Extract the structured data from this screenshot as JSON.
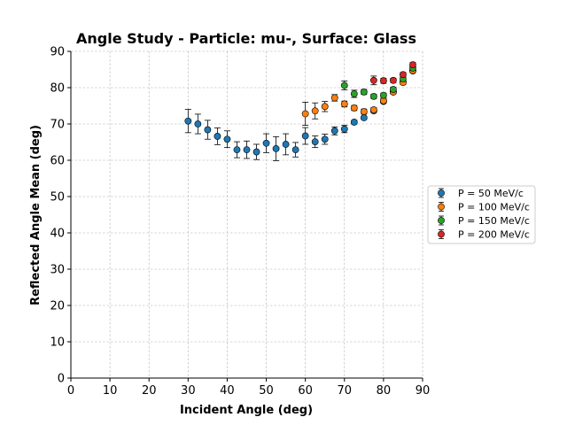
{
  "chart_data": {
    "type": "scatter",
    "title": "Angle Study - Particle: mu-, Surface: Glass",
    "xlabel": "Incident Angle (deg)",
    "ylabel": "Reflected Angle Mean (deg)",
    "xlim": [
      0,
      90
    ],
    "ylim": [
      0,
      90
    ],
    "xticks": [
      0,
      10,
      20,
      30,
      40,
      50,
      60,
      70,
      80,
      90
    ],
    "yticks": [
      0,
      10,
      20,
      30,
      40,
      50,
      60,
      70,
      80,
      90
    ],
    "grid": true,
    "legend_position": "right",
    "series": [
      {
        "name": "P = 50 MeV/c",
        "color": "#1f77b4",
        "points": [
          {
            "x": 30,
            "y": 70.8,
            "err": 3.2
          },
          {
            "x": 32.5,
            "y": 70.0,
            "err": 2.7
          },
          {
            "x": 35,
            "y": 68.4,
            "err": 2.6
          },
          {
            "x": 37.5,
            "y": 66.6,
            "err": 2.3
          },
          {
            "x": 40,
            "y": 65.8,
            "err": 2.3
          },
          {
            "x": 42.5,
            "y": 62.9,
            "err": 2.2
          },
          {
            "x": 45,
            "y": 62.9,
            "err": 2.4
          },
          {
            "x": 47.5,
            "y": 62.3,
            "err": 2.1
          },
          {
            "x": 50,
            "y": 64.7,
            "err": 2.6
          },
          {
            "x": 52.5,
            "y": 63.2,
            "err": 3.3
          },
          {
            "x": 55,
            "y": 64.4,
            "err": 2.9
          },
          {
            "x": 57.5,
            "y": 62.9,
            "err": 2.0
          },
          {
            "x": 60,
            "y": 66.7,
            "err": 2.3
          },
          {
            "x": 62.5,
            "y": 65.1,
            "err": 1.6
          },
          {
            "x": 65,
            "y": 65.8,
            "err": 1.4
          },
          {
            "x": 67.5,
            "y": 68.1,
            "err": 1.1
          },
          {
            "x": 70,
            "y": 68.6,
            "err": 1.0
          },
          {
            "x": 72.5,
            "y": 70.5,
            "err": 0.5
          },
          {
            "x": 75,
            "y": 71.7,
            "err": 0.4
          },
          {
            "x": 77.5,
            "y": 73.6,
            "err": 0.4
          },
          {
            "x": 80,
            "y": 76.2,
            "err": 0.4
          },
          {
            "x": 82.5,
            "y": 78.8,
            "err": 0.4
          },
          {
            "x": 85,
            "y": 81.6,
            "err": 0.4
          },
          {
            "x": 87.5,
            "y": 84.6,
            "err": 0.4
          }
        ]
      },
      {
        "name": "P = 100 MeV/c",
        "color": "#ff7f0e",
        "points": [
          {
            "x": 60,
            "y": 72.8,
            "err": 3.2
          },
          {
            "x": 62.5,
            "y": 73.6,
            "err": 2.2
          },
          {
            "x": 65,
            "y": 74.8,
            "err": 1.4
          },
          {
            "x": 67.5,
            "y": 77.2,
            "err": 0.9
          },
          {
            "x": 70,
            "y": 75.5,
            "err": 0.8
          },
          {
            "x": 72.5,
            "y": 74.4,
            "err": 0.7
          },
          {
            "x": 75,
            "y": 73.4,
            "err": 0.7
          },
          {
            "x": 77.5,
            "y": 73.9,
            "err": 0.6
          },
          {
            "x": 80,
            "y": 76.4,
            "err": 0.6
          },
          {
            "x": 82.5,
            "y": 78.8,
            "err": 0.5
          },
          {
            "x": 85,
            "y": 81.4,
            "err": 0.5
          },
          {
            "x": 87.5,
            "y": 84.7,
            "err": 0.5
          }
        ]
      },
      {
        "name": "P = 150 MeV/c",
        "color": "#2ca02c",
        "points": [
          {
            "x": 70,
            "y": 80.6,
            "err": 1.2
          },
          {
            "x": 72.5,
            "y": 78.3,
            "err": 1.0
          },
          {
            "x": 75,
            "y": 78.8,
            "err": 0.7
          },
          {
            "x": 77.5,
            "y": 77.6,
            "err": 0.6
          },
          {
            "x": 80,
            "y": 77.9,
            "err": 0.6
          },
          {
            "x": 82.5,
            "y": 79.5,
            "err": 0.6
          },
          {
            "x": 85,
            "y": 82.4,
            "err": 0.6
          },
          {
            "x": 87.5,
            "y": 85.4,
            "err": 0.6
          }
        ]
      },
      {
        "name": "P = 200 MeV/c",
        "color": "#d62728",
        "points": [
          {
            "x": 77.5,
            "y": 82.0,
            "err": 1.2
          },
          {
            "x": 80,
            "y": 81.9,
            "err": 0.7
          },
          {
            "x": 82.5,
            "y": 82.0,
            "err": 0.6
          },
          {
            "x": 85,
            "y": 83.6,
            "err": 0.6
          },
          {
            "x": 87.5,
            "y": 86.3,
            "err": 0.6
          }
        ]
      }
    ]
  }
}
